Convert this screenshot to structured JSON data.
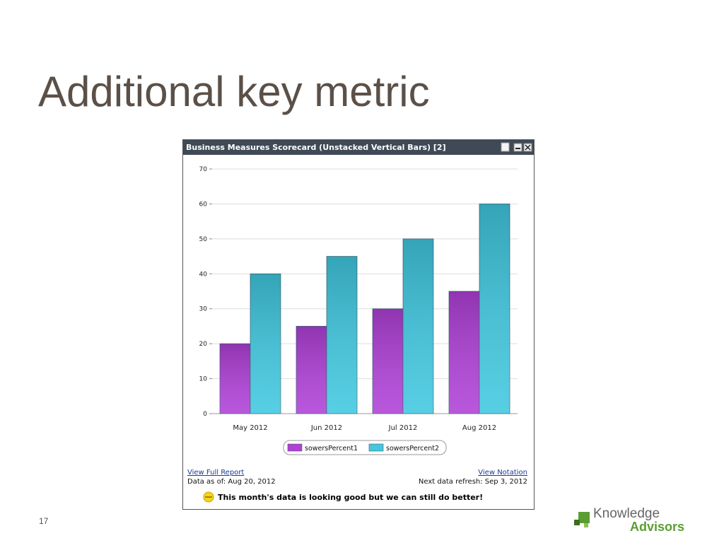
{
  "slide": {
    "title": "Additional key metric",
    "page_number": "17",
    "logo": {
      "line1": "Knowledge",
      "line2": "Advisors"
    }
  },
  "widget": {
    "links": {
      "full_report": "View Full Report",
      "notation": "View Notation"
    },
    "data_as_of": "Data as of: Aug 20, 2012",
    "next_refresh": "Next data refresh: Sep 3, 2012",
    "status_message": "This month's data is looking good but we can still do better!"
  },
  "chart_data": {
    "type": "bar",
    "title": "Business Measures Scorecard (Unstacked Vertical Bars) [2]",
    "categories": [
      "May 2012",
      "Jun 2012",
      "Jul 2012",
      "Aug 2012"
    ],
    "series": [
      {
        "name": "sowersPercent1",
        "color": "#b040d8",
        "values": [
          20,
          25,
          30,
          35
        ]
      },
      {
        "name": "sowersPercent2",
        "color": "#40c8e0",
        "values": [
          40,
          45,
          50,
          60
        ]
      }
    ],
    "ylim": [
      0,
      70
    ],
    "yticks": [
      0,
      10,
      20,
      30,
      40,
      50,
      60,
      70
    ],
    "grid": true,
    "legend": "bottom"
  }
}
